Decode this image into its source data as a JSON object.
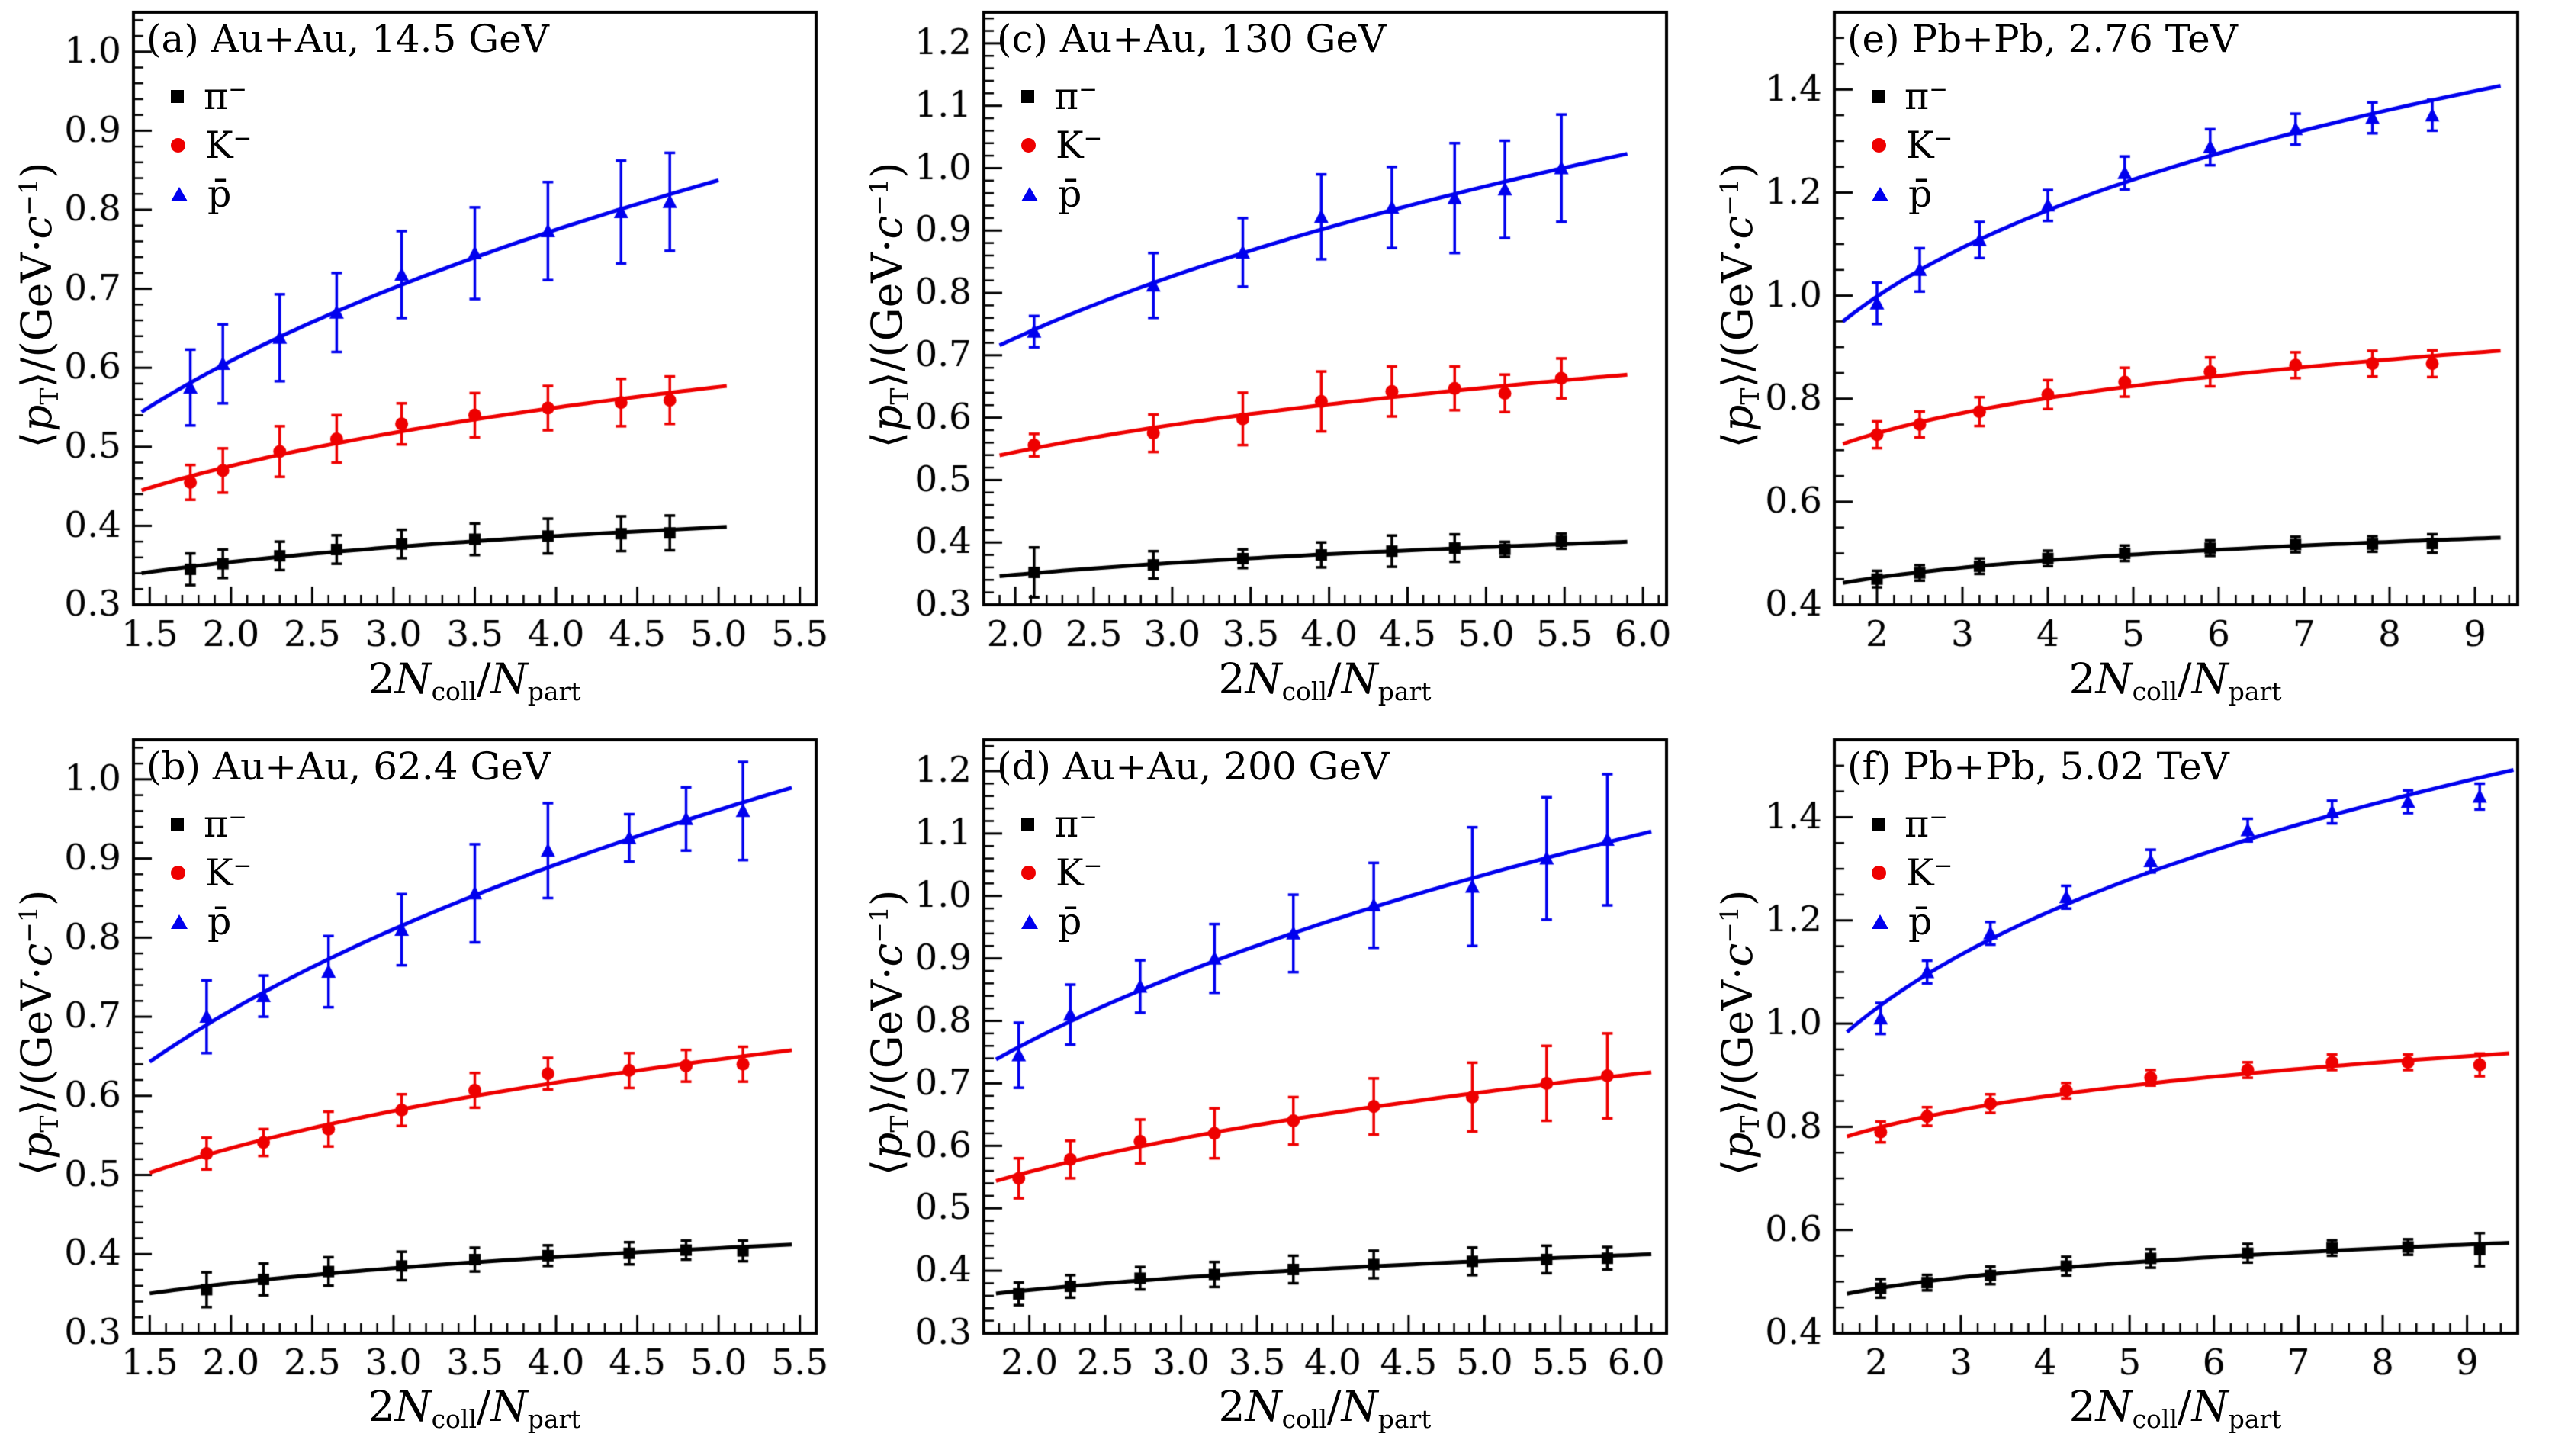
{
  "figure": {
    "background": "#ffffff",
    "axis_color": "#000000",
    "text_color": "#000000",
    "colors": {
      "pion": "#000000",
      "kaon": "#ee0000",
      "pbar": "#0000ee"
    },
    "xlabel": {
      "p1": "2",
      "p2": "N",
      "p3": "coll",
      "p4": "/",
      "p5": "N",
      "p6": "part"
    },
    "ylabel": {
      "p1": "⟨",
      "p2": "p",
      "p3": "T",
      "p4": "⟩/(GeV·",
      "p5": "c",
      "p6": "−1",
      "p7": ")"
    },
    "legend": [
      {
        "key": "pion",
        "marker": "square",
        "label": "π",
        "sup": "−"
      },
      {
        "key": "kaon",
        "marker": "circle",
        "label": "K",
        "sup": "−"
      },
      {
        "key": "pbar",
        "marker": "triangle",
        "label": "p̄",
        "sup": ""
      }
    ]
  },
  "chart_data": [
    {
      "id": "a",
      "type": "scatter",
      "title": "(a) Au+Au, 14.5 GeV",
      "xlim": [
        1.4,
        5.6
      ],
      "ylim": [
        0.3,
        1.05
      ],
      "xticks": [
        1.5,
        2.0,
        2.5,
        3.0,
        3.5,
        4.0,
        4.5,
        5.0,
        5.5
      ],
      "x_decimals": 1,
      "xminor": 0.1,
      "yticks": [
        0.3,
        0.4,
        0.5,
        0.6,
        0.7,
        0.8,
        0.9,
        1.0
      ],
      "y_decimals": 1,
      "yminor": 0.02,
      "series": [
        {
          "name": "pi-",
          "key": "pion",
          "marker": "square",
          "fit_range": [
            1.45,
            5.05
          ],
          "x": [
            1.75,
            1.95,
            2.3,
            2.65,
            3.05,
            3.5,
            3.95,
            4.4,
            4.7
          ],
          "y": [
            0.345,
            0.352,
            0.362,
            0.37,
            0.377,
            0.383,
            0.387,
            0.39,
            0.391
          ],
          "yerr": [
            0.02,
            0.018,
            0.018,
            0.018,
            0.018,
            0.02,
            0.022,
            0.022,
            0.022
          ]
        },
        {
          "name": "K-",
          "key": "kaon",
          "marker": "circle",
          "fit_range": [
            1.45,
            5.05
          ],
          "x": [
            1.75,
            1.95,
            2.3,
            2.65,
            3.05,
            3.5,
            3.95,
            4.4,
            4.7
          ],
          "y": [
            0.455,
            0.47,
            0.494,
            0.51,
            0.529,
            0.54,
            0.549,
            0.556,
            0.559
          ],
          "yerr": [
            0.022,
            0.028,
            0.032,
            0.03,
            0.026,
            0.028,
            0.028,
            0.03,
            0.03
          ]
        },
        {
          "name": "pbar",
          "key": "pbar",
          "marker": "triangle",
          "fit_range": [
            1.45,
            5.0
          ],
          "x": [
            1.75,
            1.95,
            2.3,
            2.65,
            3.05,
            3.5,
            3.95,
            4.4,
            4.7
          ],
          "y": [
            0.575,
            0.605,
            0.638,
            0.67,
            0.718,
            0.745,
            0.773,
            0.797,
            0.81
          ],
          "yerr": [
            0.048,
            0.05,
            0.055,
            0.05,
            0.055,
            0.058,
            0.062,
            0.065,
            0.062
          ]
        }
      ]
    },
    {
      "id": "b",
      "type": "scatter",
      "title": "(b) Au+Au, 62.4 GeV",
      "xlim": [
        1.4,
        5.6
      ],
      "ylim": [
        0.3,
        1.05
      ],
      "xticks": [
        1.5,
        2.0,
        2.5,
        3.0,
        3.5,
        4.0,
        4.5,
        5.0,
        5.5
      ],
      "x_decimals": 1,
      "xminor": 0.1,
      "yticks": [
        0.3,
        0.4,
        0.5,
        0.6,
        0.7,
        0.8,
        0.9,
        1.0
      ],
      "y_decimals": 1,
      "yminor": 0.02,
      "series": [
        {
          "name": "pi-",
          "key": "pion",
          "marker": "square",
          "fit_range": [
            1.5,
            5.45
          ],
          "x": [
            1.85,
            2.2,
            2.6,
            3.05,
            3.5,
            3.95,
            4.45,
            4.8,
            5.15
          ],
          "y": [
            0.355,
            0.368,
            0.378,
            0.385,
            0.393,
            0.398,
            0.401,
            0.405,
            0.404
          ],
          "yerr": [
            0.022,
            0.02,
            0.018,
            0.018,
            0.015,
            0.013,
            0.014,
            0.012,
            0.013
          ]
        },
        {
          "name": "K-",
          "key": "kaon",
          "marker": "circle",
          "fit_range": [
            1.5,
            5.45
          ],
          "x": [
            1.85,
            2.2,
            2.6,
            3.05,
            3.5,
            3.95,
            4.45,
            4.8,
            5.15
          ],
          "y": [
            0.527,
            0.541,
            0.558,
            0.582,
            0.607,
            0.628,
            0.632,
            0.638,
            0.64
          ],
          "yerr": [
            0.02,
            0.017,
            0.022,
            0.02,
            0.022,
            0.02,
            0.022,
            0.02,
            0.022
          ]
        },
        {
          "name": "pbar",
          "key": "pbar",
          "marker": "triangle",
          "fit_range": [
            1.5,
            5.45
          ],
          "x": [
            1.85,
            2.2,
            2.6,
            3.05,
            3.5,
            3.95,
            4.45,
            4.8,
            5.15
          ],
          "y": [
            0.7,
            0.726,
            0.757,
            0.81,
            0.856,
            0.91,
            0.926,
            0.95,
            0.96
          ],
          "yerr": [
            0.046,
            0.026,
            0.045,
            0.045,
            0.062,
            0.06,
            0.03,
            0.04,
            0.062
          ]
        }
      ]
    },
    {
      "id": "c",
      "type": "scatter",
      "title": "(c) Au+Au, 130 GeV",
      "xlim": [
        1.8,
        6.15
      ],
      "ylim": [
        0.3,
        1.25
      ],
      "xticks": [
        2.0,
        2.5,
        3.0,
        3.5,
        4.0,
        4.5,
        5.0,
        5.5,
        6.0
      ],
      "x_decimals": 1,
      "xminor": 0.1,
      "yticks": [
        0.3,
        0.4,
        0.5,
        0.6,
        0.7,
        0.8,
        0.9,
        1.0,
        1.1,
        1.2
      ],
      "y_decimals": 1,
      "yminor": 0.02,
      "series": [
        {
          "name": "pi-",
          "key": "pion",
          "marker": "square",
          "fit_range": [
            1.9,
            5.9
          ],
          "x": [
            2.12,
            2.88,
            3.45,
            3.95,
            4.4,
            4.8,
            5.12,
            5.48
          ],
          "y": [
            0.352,
            0.364,
            0.374,
            0.38,
            0.386,
            0.391,
            0.389,
            0.402
          ],
          "yerr": [
            0.04,
            0.022,
            0.015,
            0.02,
            0.025,
            0.022,
            0.012,
            0.012
          ]
        },
        {
          "name": "K-",
          "key": "kaon",
          "marker": "circle",
          "fit_range": [
            1.9,
            5.9
          ],
          "x": [
            2.12,
            2.88,
            3.45,
            3.95,
            4.4,
            4.8,
            5.12,
            5.48
          ],
          "y": [
            0.556,
            0.575,
            0.598,
            0.626,
            0.642,
            0.647,
            0.639,
            0.663
          ],
          "yerr": [
            0.018,
            0.03,
            0.042,
            0.048,
            0.04,
            0.035,
            0.03,
            0.032
          ]
        },
        {
          "name": "pbar",
          "key": "pbar",
          "marker": "triangle",
          "fit_range": [
            1.9,
            5.9
          ],
          "x": [
            2.12,
            2.88,
            3.45,
            3.95,
            4.4,
            4.8,
            5.12,
            5.48
          ],
          "y": [
            0.738,
            0.812,
            0.865,
            0.922,
            0.937,
            0.952,
            0.966,
            1.0
          ],
          "yerr": [
            0.025,
            0.052,
            0.055,
            0.068,
            0.065,
            0.088,
            0.078,
            0.086
          ]
        }
      ]
    },
    {
      "id": "d",
      "type": "scatter",
      "title": "(d) Au+Au, 200 GeV",
      "xlim": [
        1.7,
        6.2
      ],
      "ylim": [
        0.3,
        1.25
      ],
      "xticks": [
        2.0,
        2.5,
        3.0,
        3.5,
        4.0,
        4.5,
        5.0,
        5.5,
        6.0
      ],
      "x_decimals": 1,
      "xminor": 0.1,
      "yticks": [
        0.3,
        0.4,
        0.5,
        0.6,
        0.7,
        0.8,
        0.9,
        1.0,
        1.1,
        1.2
      ],
      "y_decimals": 1,
      "yminor": 0.02,
      "series": [
        {
          "name": "pi-",
          "key": "pion",
          "marker": "square",
          "fit_range": [
            1.78,
            6.1
          ],
          "x": [
            1.93,
            2.27,
            2.73,
            3.22,
            3.74,
            4.27,
            4.92,
            5.41,
            5.81
          ],
          "y": [
            0.363,
            0.375,
            0.388,
            0.394,
            0.402,
            0.41,
            0.415,
            0.418,
            0.42
          ],
          "yerr": [
            0.018,
            0.018,
            0.018,
            0.02,
            0.022,
            0.022,
            0.022,
            0.022,
            0.018
          ]
        },
        {
          "name": "K-",
          "key": "kaon",
          "marker": "circle",
          "fit_range": [
            1.78,
            6.1
          ],
          "x": [
            1.93,
            2.27,
            2.73,
            3.22,
            3.74,
            4.27,
            4.92,
            5.41,
            5.81
          ],
          "y": [
            0.548,
            0.578,
            0.607,
            0.62,
            0.64,
            0.663,
            0.678,
            0.7,
            0.712
          ],
          "yerr": [
            0.032,
            0.03,
            0.035,
            0.04,
            0.038,
            0.045,
            0.055,
            0.06,
            0.068
          ]
        },
        {
          "name": "pbar",
          "key": "pbar",
          "marker": "triangle",
          "fit_range": [
            1.78,
            6.1
          ],
          "x": [
            1.93,
            2.27,
            2.73,
            3.22,
            3.74,
            4.27,
            4.92,
            5.41,
            5.81
          ],
          "y": [
            0.745,
            0.81,
            0.855,
            0.9,
            0.94,
            0.985,
            1.015,
            1.06,
            1.09
          ],
          "yerr": [
            0.052,
            0.048,
            0.042,
            0.055,
            0.062,
            0.068,
            0.095,
            0.098,
            0.105
          ]
        }
      ]
    },
    {
      "id": "e",
      "type": "scatter",
      "title": "(e) Pb+Pb, 2.76 TeV",
      "xlim": [
        1.5,
        9.5
      ],
      "ylim": [
        0.4,
        1.55
      ],
      "xticks": [
        2,
        3,
        4,
        5,
        6,
        7,
        8,
        9
      ],
      "x_decimals": 0,
      "xminor": 0.2,
      "yticks": [
        0.4,
        0.6,
        0.8,
        1.0,
        1.2,
        1.4
      ],
      "y_decimals": 1,
      "yminor": 0.05,
      "series": [
        {
          "name": "pi-",
          "key": "pion",
          "marker": "square",
          "fit_range": [
            1.6,
            9.3
          ],
          "x": [
            2.0,
            2.5,
            3.2,
            4.0,
            4.9,
            5.9,
            6.9,
            7.8,
            8.5
          ],
          "y": [
            0.45,
            0.462,
            0.475,
            0.49,
            0.5,
            0.51,
            0.517,
            0.518,
            0.519
          ],
          "yerr": [
            0.016,
            0.015,
            0.015,
            0.015,
            0.015,
            0.015,
            0.015,
            0.015,
            0.018
          ]
        },
        {
          "name": "K-",
          "key": "kaon",
          "marker": "circle",
          "fit_range": [
            1.6,
            9.3
          ],
          "x": [
            2.0,
            2.5,
            3.2,
            4.0,
            4.9,
            5.9,
            6.9,
            7.8,
            8.5
          ],
          "y": [
            0.73,
            0.75,
            0.775,
            0.808,
            0.832,
            0.852,
            0.865,
            0.868,
            0.868
          ],
          "yerr": [
            0.026,
            0.025,
            0.028,
            0.028,
            0.028,
            0.028,
            0.025,
            0.025,
            0.026
          ]
        },
        {
          "name": "pbar",
          "key": "pbar",
          "marker": "triangle",
          "fit_range": [
            1.6,
            9.3
          ],
          "x": [
            2.0,
            2.5,
            3.2,
            4.0,
            4.9,
            5.9,
            6.9,
            7.8,
            8.5
          ],
          "y": [
            0.985,
            1.05,
            1.108,
            1.175,
            1.238,
            1.288,
            1.323,
            1.345,
            1.35
          ],
          "yerr": [
            0.04,
            0.042,
            0.035,
            0.03,
            0.032,
            0.035,
            0.03,
            0.03,
            0.03
          ]
        }
      ]
    },
    {
      "id": "f",
      "type": "scatter",
      "title": "(f) Pb+Pb, 5.02 TeV",
      "xlim": [
        1.5,
        9.6
      ],
      "ylim": [
        0.4,
        1.55
      ],
      "xticks": [
        2,
        3,
        4,
        5,
        6,
        7,
        8,
        9
      ],
      "x_decimals": 0,
      "xminor": 0.2,
      "yticks": [
        0.4,
        0.6,
        0.8,
        1.0,
        1.2,
        1.4
      ],
      "y_decimals": 1,
      "yminor": 0.05,
      "series": [
        {
          "name": "pi-",
          "key": "pion",
          "marker": "square",
          "fit_range": [
            1.65,
            9.5
          ],
          "x": [
            2.05,
            2.6,
            3.35,
            4.25,
            5.25,
            6.4,
            7.4,
            8.3,
            9.15
          ],
          "y": [
            0.487,
            0.498,
            0.512,
            0.53,
            0.545,
            0.555,
            0.565,
            0.567,
            0.562
          ],
          "yerr": [
            0.018,
            0.015,
            0.017,
            0.018,
            0.018,
            0.018,
            0.015,
            0.015,
            0.032
          ]
        },
        {
          "name": "K-",
          "key": "kaon",
          "marker": "circle",
          "fit_range": [
            1.65,
            9.5
          ],
          "x": [
            2.05,
            2.6,
            3.35,
            4.25,
            5.25,
            6.4,
            7.4,
            8.3,
            9.15
          ],
          "y": [
            0.79,
            0.82,
            0.845,
            0.87,
            0.895,
            0.91,
            0.925,
            0.925,
            0.92
          ],
          "yerr": [
            0.02,
            0.018,
            0.018,
            0.015,
            0.015,
            0.015,
            0.015,
            0.015,
            0.022
          ]
        },
        {
          "name": "pbar",
          "key": "pbar",
          "marker": "triangle",
          "fit_range": [
            1.65,
            9.55
          ],
          "x": [
            2.05,
            2.6,
            3.35,
            4.25,
            5.25,
            6.4,
            7.4,
            8.3,
            9.15
          ],
          "y": [
            1.01,
            1.1,
            1.175,
            1.245,
            1.315,
            1.375,
            1.41,
            1.43,
            1.44
          ],
          "yerr": [
            0.03,
            0.022,
            0.022,
            0.022,
            0.022,
            0.022,
            0.022,
            0.022,
            0.025
          ]
        }
      ]
    }
  ]
}
